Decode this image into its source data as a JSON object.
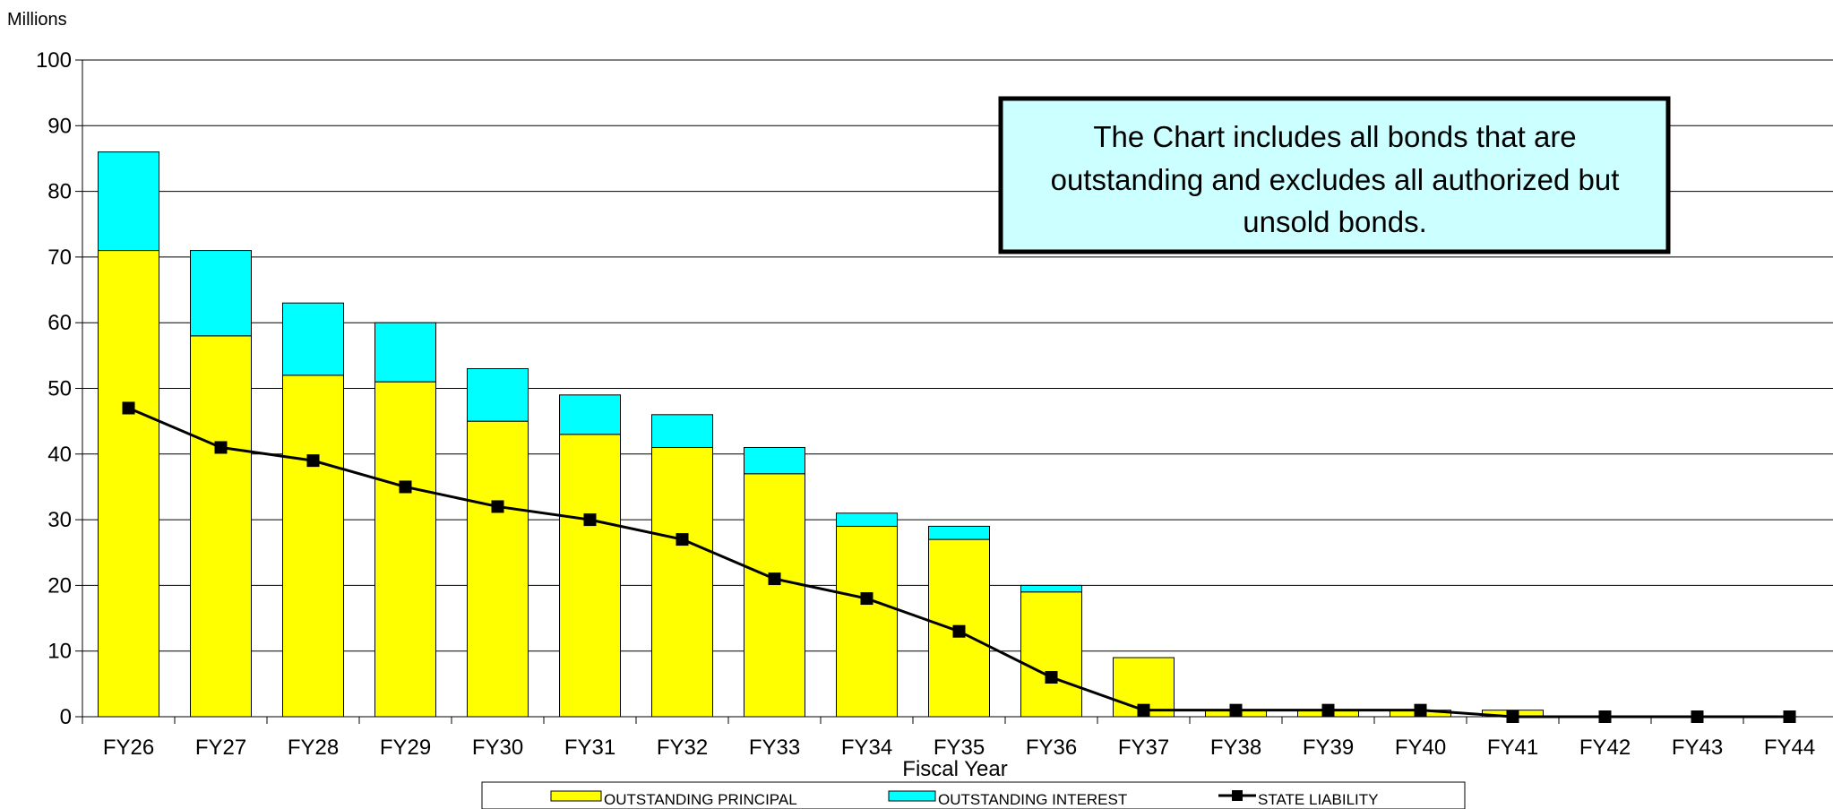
{
  "chart_data": {
    "type": "bar",
    "stacked": true,
    "y_unit_label": "Millions",
    "xlabel": "Fiscal Year",
    "ylabel": "",
    "ylim": [
      0,
      100
    ],
    "yticks": [
      0,
      10,
      20,
      30,
      40,
      50,
      60,
      70,
      80,
      90,
      100
    ],
    "grid": true,
    "legend_position": "bottom",
    "categories": [
      "FY26",
      "FY27",
      "FY28",
      "FY29",
      "FY30",
      "FY31",
      "FY32",
      "FY33",
      "FY34",
      "FY35",
      "FY36",
      "FY37",
      "FY38",
      "FY39",
      "FY40",
      "FY41",
      "FY42",
      "FY43",
      "FY44"
    ],
    "series": [
      {
        "name": "OUTSTANDING PRINCIPAL",
        "kind": "bar",
        "color": "#ffff00",
        "values": [
          71,
          58,
          52,
          51,
          45,
          43,
          41,
          37,
          29,
          27,
          19,
          9,
          1,
          1,
          1,
          1,
          0,
          0,
          0
        ]
      },
      {
        "name": "OUTSTANDING INTEREST",
        "kind": "bar",
        "color": "#00ffff",
        "values": [
          15,
          13,
          11,
          9,
          8,
          6,
          5,
          4,
          2,
          2,
          1,
          0,
          0,
          0,
          0,
          0,
          0,
          0,
          0
        ]
      },
      {
        "name": "STATE LIABILITY",
        "kind": "line",
        "color": "#000000",
        "values": [
          47,
          41,
          39,
          35,
          32,
          30,
          27,
          21,
          18,
          13,
          6,
          1,
          1,
          1,
          1,
          0,
          0,
          0,
          0
        ]
      }
    ],
    "annotation": {
      "lines": [
        "The Chart includes all bonds that are",
        "outstanding and excludes all authorized but",
        "unsold bonds."
      ],
      "background": "#ccffff"
    }
  }
}
